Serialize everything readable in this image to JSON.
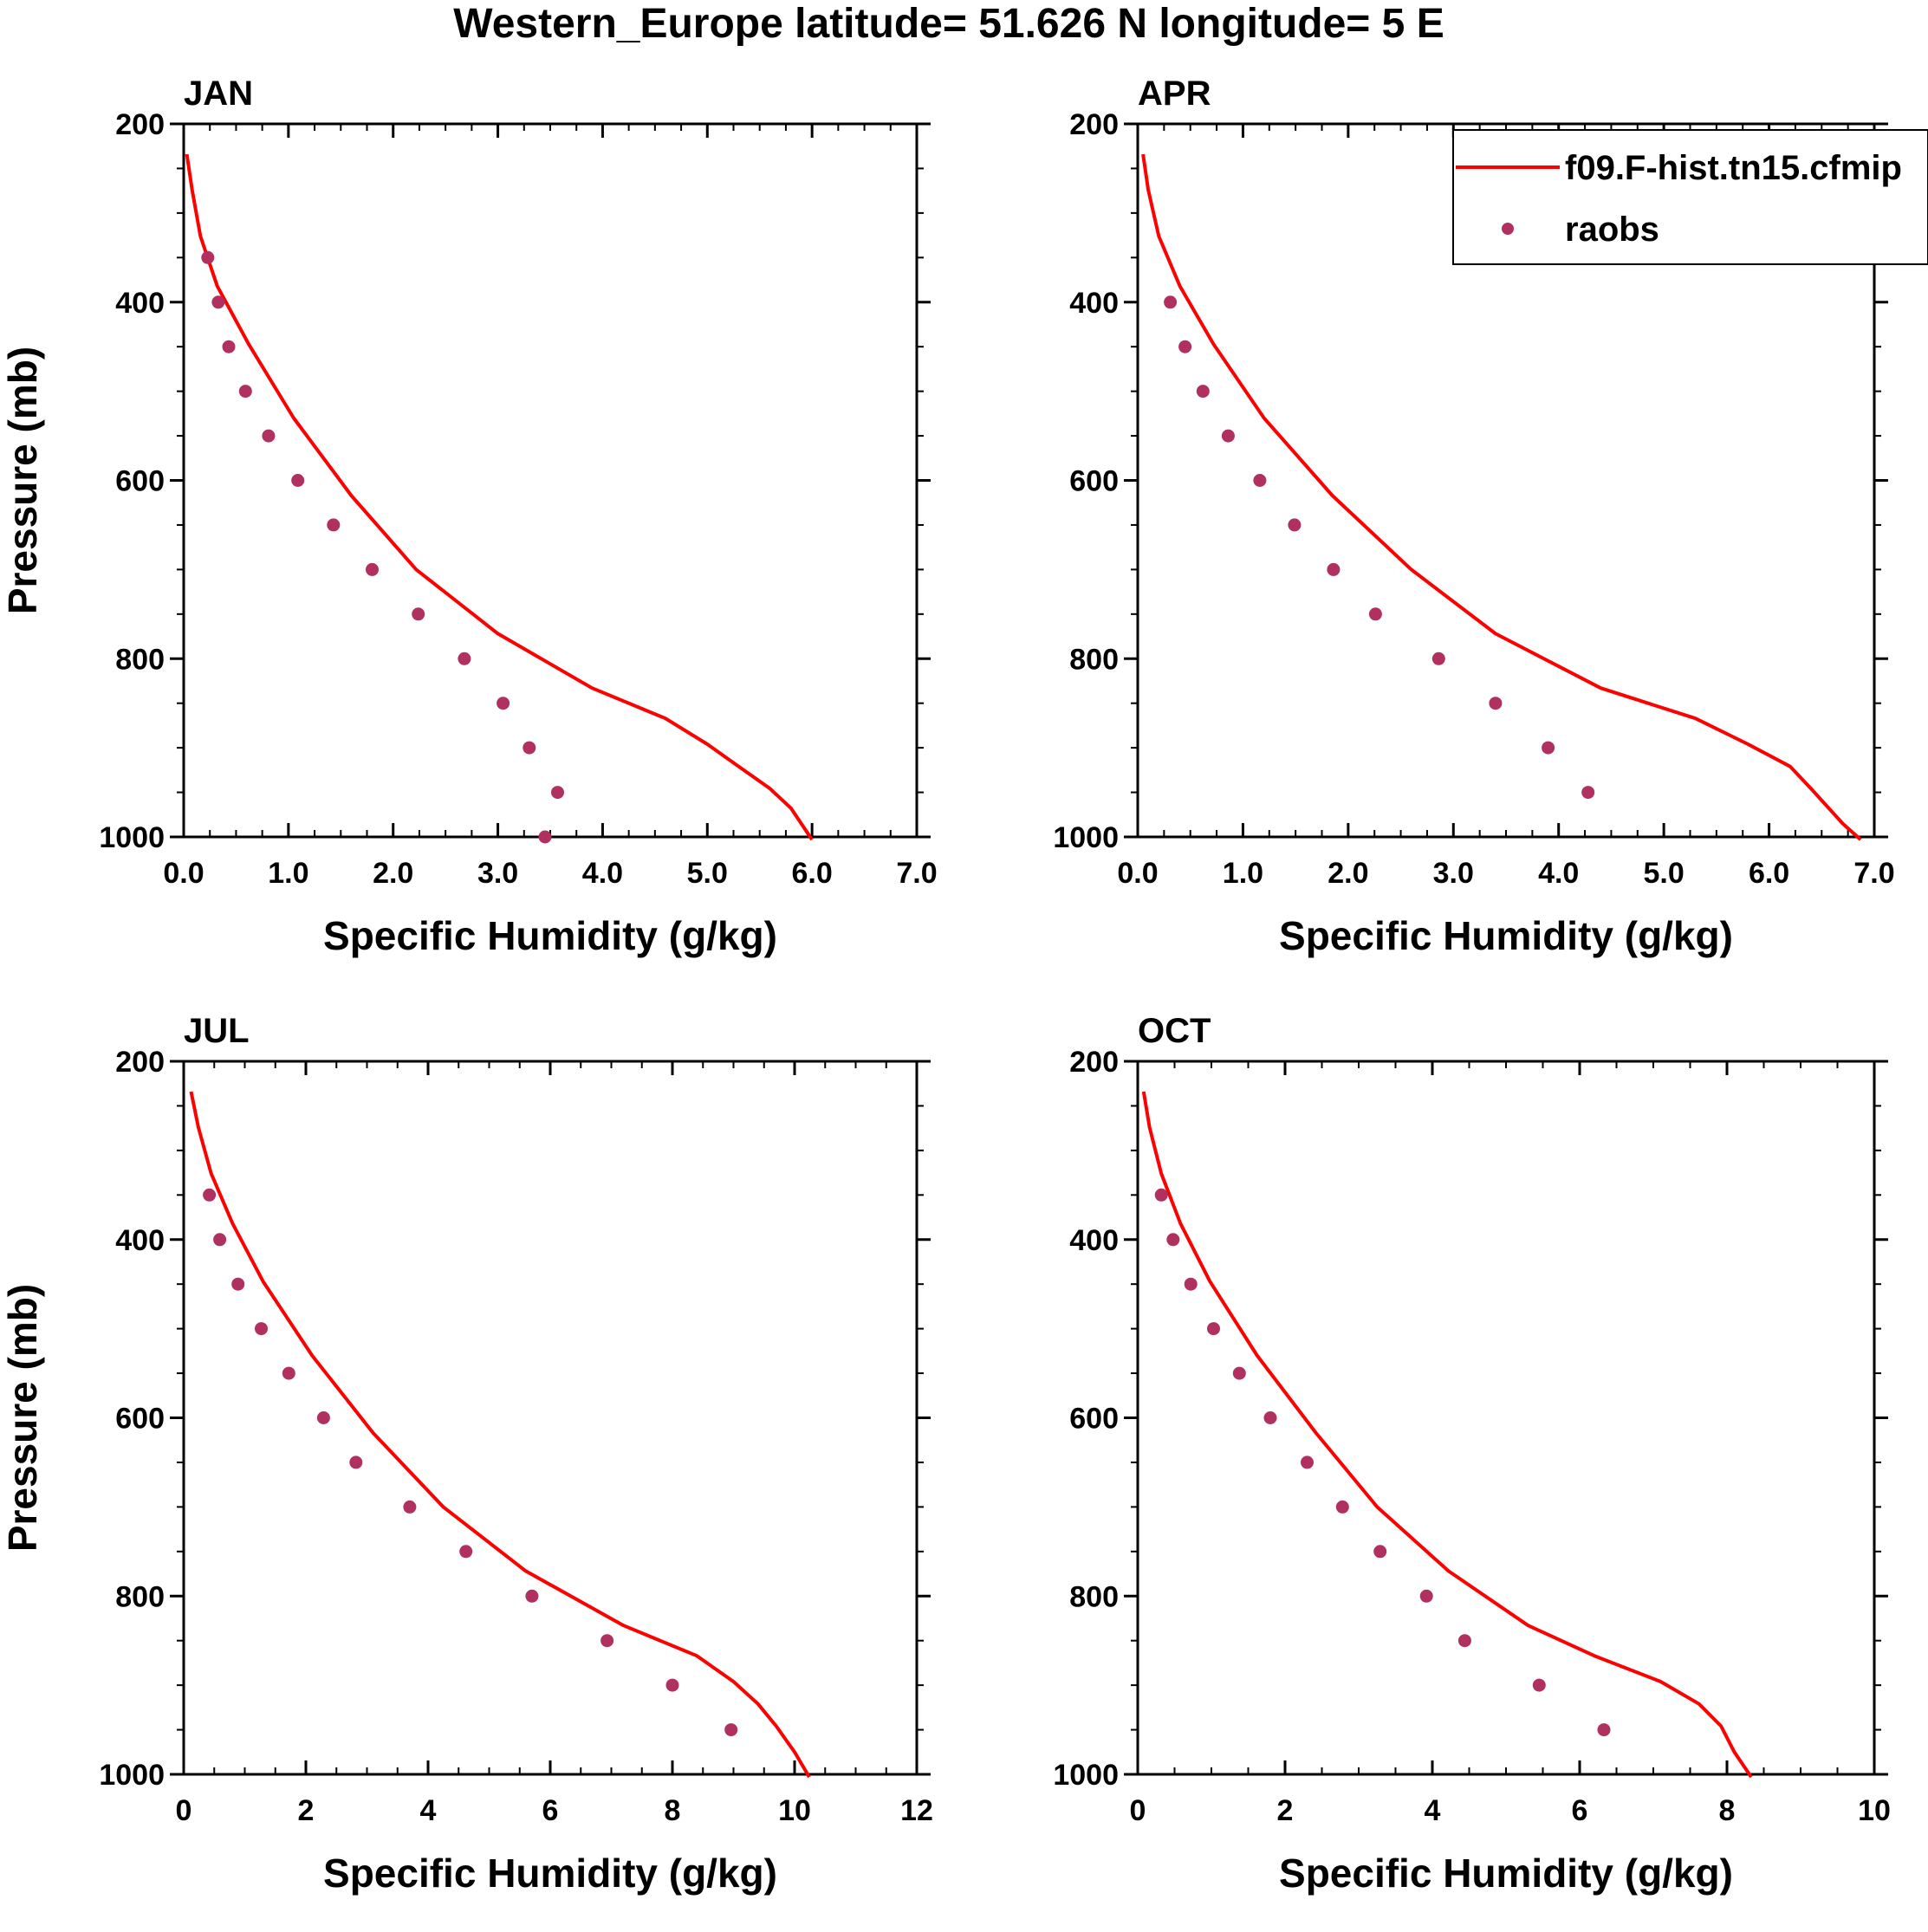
{
  "title": "Western_Europe  latitude= 51.626 N longitude= 5 E",
  "colors": {
    "model": "#ff0000",
    "obs": "#b03060",
    "axis": "#000000"
  },
  "legend": [
    {
      "label": "f09.F-hist.tn15.cfmip",
      "kind": "line",
      "color": "#ff0000"
    },
    {
      "label": "raobs",
      "kind": "marker",
      "color": "#b03060"
    }
  ],
  "chart_data": [
    {
      "type": "line+scatter",
      "panel": "JAN",
      "xlabel": "Specific Humidity (g/kg)",
      "ylabel": "Pressure (mb)",
      "xlim": [
        0,
        7
      ],
      "ylim": [
        200,
        1000
      ],
      "y_reversed": true,
      "xticks": [
        0,
        1,
        2,
        3,
        4,
        5,
        6,
        7
      ],
      "xtick_labels": [
        "0.0",
        "1.0",
        "2.0",
        "3.0",
        "4.0",
        "5.0",
        "6.0",
        "7.0"
      ],
      "yticks": [
        200,
        400,
        600,
        800,
        1000
      ],
      "ytick_labels": [
        "200",
        "400",
        "600",
        "800",
        "1000"
      ],
      "series": [
        {
          "name": "f09.F-hist.tn15.cfmip",
          "kind": "line",
          "points": [
            [
              0.03,
              234
            ],
            [
              0.08,
              274
            ],
            [
              0.16,
              326
            ],
            [
              0.32,
              382
            ],
            [
              0.62,
              447
            ],
            [
              1.05,
              530
            ],
            [
              1.6,
              617
            ],
            [
              2.22,
              700
            ],
            [
              3.0,
              772
            ],
            [
              3.9,
              833
            ],
            [
              4.6,
              867
            ],
            [
              5.0,
              896
            ],
            [
              5.3,
              921
            ],
            [
              5.6,
              946
            ],
            [
              5.8,
              968
            ],
            [
              6.0,
              1003
            ]
          ]
        },
        {
          "name": "raobs",
          "kind": "scatter",
          "points": [
            [
              0.23,
              350
            ],
            [
              0.33,
              400
            ],
            [
              0.43,
              450
            ],
            [
              0.59,
              500
            ],
            [
              0.81,
              550
            ],
            [
              1.09,
              600
            ],
            [
              1.43,
              650
            ],
            [
              1.8,
              700
            ],
            [
              2.24,
              750
            ],
            [
              2.68,
              800
            ],
            [
              3.05,
              850
            ],
            [
              3.3,
              900
            ],
            [
              3.57,
              950
            ],
            [
              3.45,
              1000
            ]
          ]
        }
      ]
    },
    {
      "type": "line+scatter",
      "panel": "APR",
      "xlabel": "Specific Humidity (g/kg)",
      "ylabel": "",
      "xlim": [
        0,
        7
      ],
      "ylim": [
        200,
        1000
      ],
      "y_reversed": true,
      "xticks": [
        0,
        1,
        2,
        3,
        4,
        5,
        6,
        7
      ],
      "xtick_labels": [
        "0.0",
        "1.0",
        "2.0",
        "3.0",
        "4.0",
        "5.0",
        "6.0",
        "7.0"
      ],
      "yticks": [
        200,
        400,
        600,
        800,
        1000
      ],
      "ytick_labels": [
        "200",
        "400",
        "600",
        "800",
        "1000"
      ],
      "series": [
        {
          "name": "f09.F-hist.tn15.cfmip",
          "kind": "line",
          "points": [
            [
              0.05,
              234
            ],
            [
              0.1,
              274
            ],
            [
              0.2,
              326
            ],
            [
              0.4,
              382
            ],
            [
              0.72,
              447
            ],
            [
              1.2,
              530
            ],
            [
              1.85,
              617
            ],
            [
              2.6,
              700
            ],
            [
              3.4,
              772
            ],
            [
              4.4,
              833
            ],
            [
              5.3,
              867
            ],
            [
              5.8,
              896
            ],
            [
              6.2,
              921
            ],
            [
              6.4,
              946
            ],
            [
              6.7,
              985
            ],
            [
              6.87,
              1003
            ]
          ]
        },
        {
          "name": "raobs",
          "kind": "scatter",
          "points": [
            [
              0.31,
              400
            ],
            [
              0.45,
              450
            ],
            [
              0.62,
              500
            ],
            [
              0.86,
              550
            ],
            [
              1.16,
              600
            ],
            [
              1.49,
              650
            ],
            [
              1.86,
              700
            ],
            [
              2.26,
              750
            ],
            [
              2.86,
              800
            ],
            [
              3.4,
              850
            ],
            [
              3.9,
              900
            ],
            [
              4.28,
              950
            ]
          ]
        }
      ]
    },
    {
      "type": "line+scatter",
      "panel": "JUL",
      "xlabel": "Specific Humidity (g/kg)",
      "ylabel": "Pressure (mb)",
      "xlim": [
        0,
        12
      ],
      "ylim": [
        200,
        1000
      ],
      "y_reversed": true,
      "xticks": [
        0,
        2,
        4,
        6,
        8,
        10,
        12
      ],
      "xtick_labels": [
        "0",
        "2",
        "4",
        "6",
        "8",
        "10",
        "12"
      ],
      "yticks": [
        200,
        400,
        600,
        800,
        1000
      ],
      "ytick_labels": [
        "200",
        "400",
        "600",
        "800",
        "1000"
      ],
      "series": [
        {
          "name": "f09.F-hist.tn15.cfmip",
          "kind": "line",
          "points": [
            [
              0.12,
              234
            ],
            [
              0.24,
              274
            ],
            [
              0.45,
              326
            ],
            [
              0.8,
              382
            ],
            [
              1.3,
              447
            ],
            [
              2.1,
              530
            ],
            [
              3.1,
              617
            ],
            [
              4.25,
              700
            ],
            [
              5.6,
              772
            ],
            [
              7.2,
              833
            ],
            [
              8.4,
              867
            ],
            [
              9.0,
              896
            ],
            [
              9.4,
              921
            ],
            [
              9.7,
              946
            ],
            [
              10.0,
              975
            ],
            [
              10.24,
              1003
            ]
          ]
        },
        {
          "name": "raobs",
          "kind": "scatter",
          "points": [
            [
              0.42,
              350
            ],
            [
              0.59,
              400
            ],
            [
              0.89,
              450
            ],
            [
              1.27,
              500
            ],
            [
              1.72,
              550
            ],
            [
              2.29,
              600
            ],
            [
              2.82,
              650
            ],
            [
              3.7,
              700
            ],
            [
              4.62,
              750
            ],
            [
              5.7,
              800
            ],
            [
              6.93,
              850
            ],
            [
              8.0,
              900
            ],
            [
              8.96,
              950
            ]
          ]
        }
      ]
    },
    {
      "type": "line+scatter",
      "panel": "OCT",
      "xlabel": "Specific Humidity (g/kg)",
      "ylabel": "",
      "xlim": [
        0,
        10
      ],
      "ylim": [
        200,
        1000
      ],
      "y_reversed": true,
      "xticks": [
        0,
        2,
        4,
        6,
        8,
        10
      ],
      "xtick_labels": [
        "0",
        "2",
        "4",
        "6",
        "8",
        "10"
      ],
      "yticks": [
        200,
        400,
        600,
        800,
        1000
      ],
      "ytick_labels": [
        "200",
        "400",
        "600",
        "800",
        "1000"
      ],
      "series": [
        {
          "name": "f09.F-hist.tn15.cfmip",
          "kind": "line",
          "points": [
            [
              0.08,
              234
            ],
            [
              0.16,
              274
            ],
            [
              0.32,
              326
            ],
            [
              0.58,
              382
            ],
            [
              0.98,
              447
            ],
            [
              1.62,
              530
            ],
            [
              2.42,
              617
            ],
            [
              3.25,
              700
            ],
            [
              4.22,
              772
            ],
            [
              5.3,
              833
            ],
            [
              6.2,
              867
            ],
            [
              7.1,
              896
            ],
            [
              7.62,
              921
            ],
            [
              7.92,
              946
            ],
            [
              8.1,
              975
            ],
            [
              8.33,
              1003
            ]
          ]
        },
        {
          "name": "raobs",
          "kind": "scatter",
          "points": [
            [
              0.32,
              350
            ],
            [
              0.48,
              400
            ],
            [
              0.72,
              450
            ],
            [
              1.03,
              500
            ],
            [
              1.38,
              550
            ],
            [
              1.8,
              600
            ],
            [
              2.3,
              650
            ],
            [
              2.78,
              700
            ],
            [
              3.29,
              750
            ],
            [
              3.92,
              800
            ],
            [
              4.44,
              850
            ],
            [
              5.45,
              900
            ],
            [
              6.33,
              950
            ]
          ]
        }
      ]
    }
  ]
}
